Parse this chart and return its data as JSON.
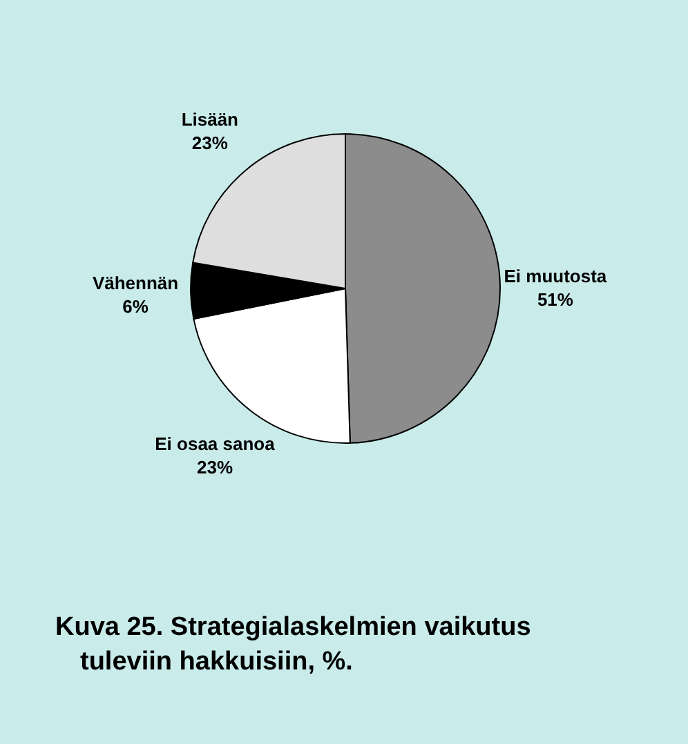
{
  "chart_data": {
    "type": "pie",
    "title": "Kuva 25.  Strategialaskelmien vaikutus tuleviin hakkuisiin, %.",
    "categories": [
      "Ei muutosta",
      "Ei osaa sanoa",
      "Vähennän",
      "Lisään"
    ],
    "values": [
      51,
      23,
      6,
      23
    ],
    "value_labels": [
      "51%",
      "23%",
      "6%",
      "23%"
    ],
    "colors": [
      "#8c8c8c",
      "#ffffff",
      "#000000",
      "#dedede"
    ]
  }
}
